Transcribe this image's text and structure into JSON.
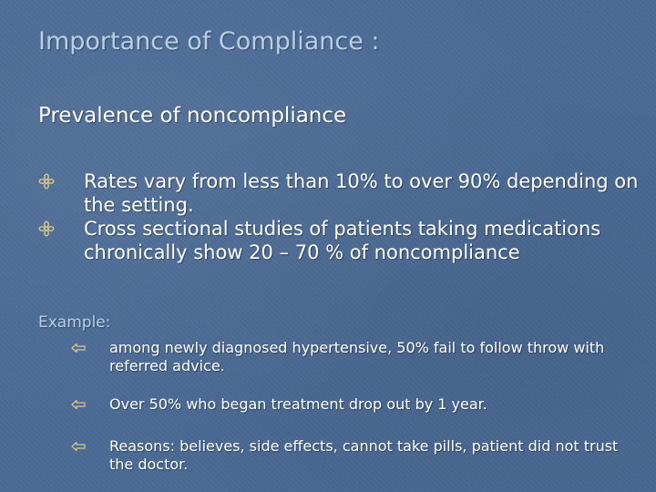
{
  "slide": {
    "title": "Importance of Compliance :",
    "subtitle": "Prevalence of noncompliance",
    "bullets": [
      {
        "icon": "flower-bullet-icon",
        "text": "Rates vary from less than 10% to over 90% depending on the setting."
      },
      {
        "icon": "flower-bullet-icon",
        "text": "Cross sectional studies of patients taking medications chronically show 20 – 70 % of noncompliance"
      }
    ],
    "example_label": "Example:",
    "examples": [
      {
        "icon": "left-arrow-icon",
        "text": "among newly diagnosed hypertensive, 50% fail to follow throw with referred advice."
      },
      {
        "icon": "left-arrow-icon",
        "text": "Over 50% who began treatment drop out by 1 year."
      },
      {
        "icon": "left-arrow-icon",
        "text": "Reasons: believes, side effects, cannot take pills, patient did not trust the doctor."
      }
    ],
    "colors": {
      "background": "#4a6a94",
      "title": "#b9cfe6",
      "body_text": "#ffffff",
      "bullet_icon": "#d8c98a"
    }
  }
}
